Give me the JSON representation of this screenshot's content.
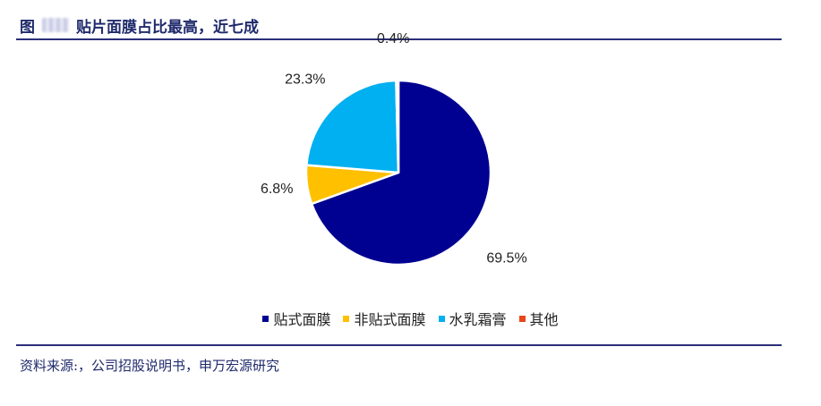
{
  "figure": {
    "label": "图",
    "title": "贴片面膜占比最高，近七成"
  },
  "source": {
    "text": "资料来源:，公司招股说明书，申万宏源研究"
  },
  "chart_data": {
    "type": "pie",
    "categories": [
      "贴式面膜",
      "非贴式面膜",
      "水乳霜膏",
      "其他"
    ],
    "values": [
      69.5,
      6.8,
      23.3,
      0.4
    ],
    "data_labels": [
      "69.5%",
      "6.8%",
      "23.3%",
      "0.4%"
    ],
    "colors": [
      "#000091",
      "#ffc000",
      "#00b0f0",
      "#e8461b"
    ],
    "title": "",
    "legend_position": "bottom"
  }
}
